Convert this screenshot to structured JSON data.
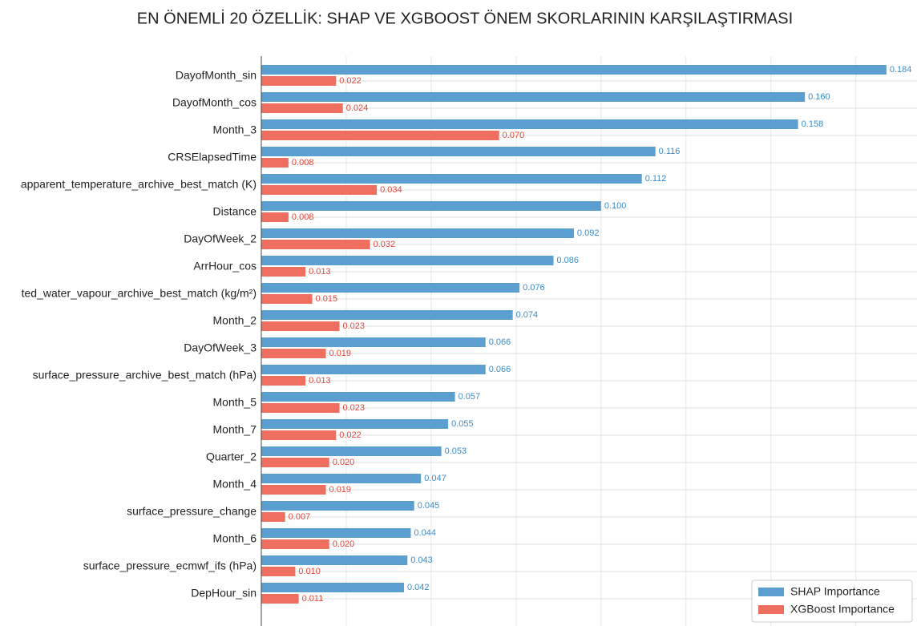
{
  "chart_data": {
    "type": "barh",
    "title": "EN ÖNEMLİ 20 ÖZELLİK: SHAP VE XGBOOST ÖNEM SKORLARININ KARŞILAŞTIRMASI",
    "categories": [
      "DayofMonth_sin",
      "DayofMonth_cos",
      "Month_3",
      "CRSElapsedTime",
      "apparent_temperature_archive_best_match (K)",
      "Distance",
      "DayOfWeek_2",
      "ArrHour_cos",
      "ted_water_vapour_archive_best_match (kg/m²)",
      "Month_2",
      "DayOfWeek_3",
      "surface_pressure_archive_best_match (hPa)",
      "Month_5",
      "Month_7",
      "Quarter_2",
      "Month_4",
      "surface_pressure_change",
      "Month_6",
      "surface_pressure_ecmwf_ifs (hPa)",
      "DepHour_sin"
    ],
    "series": [
      {
        "name": "SHAP Importance",
        "color": "#5a9fd0",
        "label_color": "#3d8cc6",
        "values": [
          0.184,
          0.16,
          0.158,
          0.116,
          0.112,
          0.1,
          0.092,
          0.086,
          0.076,
          0.074,
          0.066,
          0.066,
          0.057,
          0.055,
          0.053,
          0.047,
          0.045,
          0.044,
          0.043,
          0.042
        ],
        "value_labels": [
          "0.184",
          "0.160",
          "0.158",
          "0.116",
          "0.112",
          "0.100",
          "0.092",
          "0.086",
          "0.076",
          "0.074",
          "0.066",
          "0.066",
          "0.057",
          "0.055",
          "0.053",
          "0.047",
          "0.045",
          "0.044",
          "0.043",
          "0.042"
        ]
      },
      {
        "name": "XGBoost Importance",
        "color": "#ee6e5f",
        "label_color": "#e0483c",
        "values": [
          0.022,
          0.024,
          0.07,
          0.008,
          0.034,
          0.008,
          0.032,
          0.013,
          0.015,
          0.023,
          0.019,
          0.013,
          0.023,
          0.022,
          0.02,
          0.019,
          0.007,
          0.02,
          0.01,
          0.011
        ],
        "value_labels": [
          "0.022",
          "0.024",
          "0.070",
          "0.008",
          "0.034",
          "0.008",
          "0.032",
          "0.013",
          "0.015",
          "0.023",
          "0.019",
          "0.013",
          "0.023",
          "0.022",
          "0.020",
          "0.019",
          "0.007",
          "0.020",
          "0.010",
          "0.011"
        ]
      }
    ],
    "xlim": [
      0,
      0.193
    ],
    "xticks": [
      0,
      0.025,
      0.05,
      0.075,
      0.1,
      0.125,
      0.15,
      0.175
    ],
    "grid": true,
    "legend": "lower right"
  }
}
